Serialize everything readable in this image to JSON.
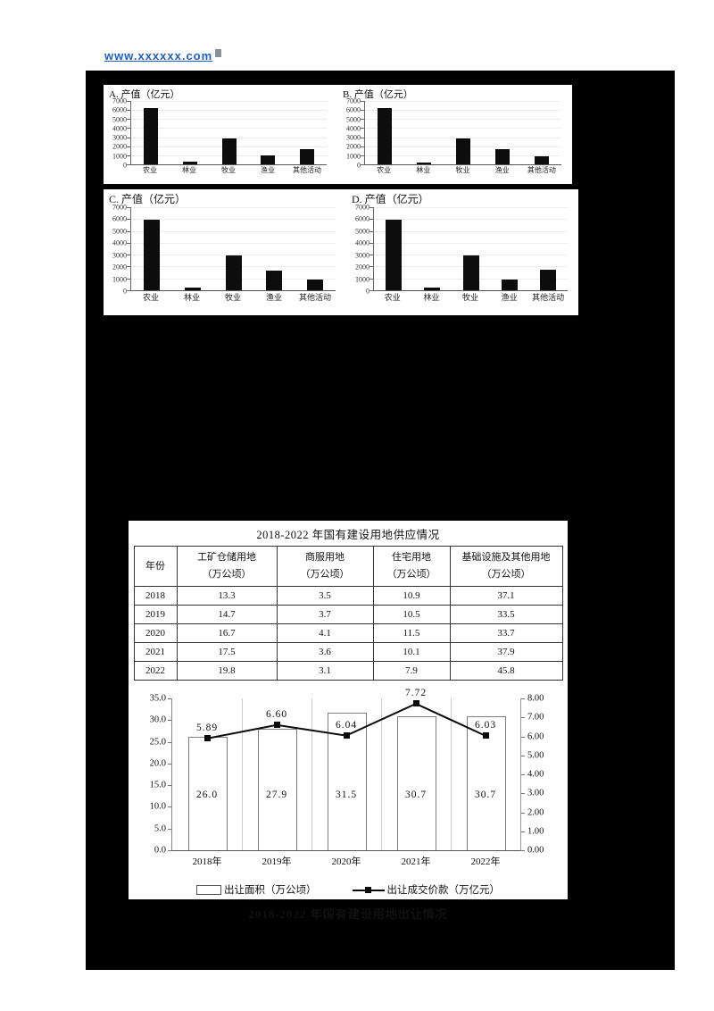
{
  "link": {
    "text": "www.xxxxxx.com",
    "color": "#1f5fc4"
  },
  "colors": {
    "page_bg": "#ffffff",
    "blackout": "#000000",
    "bar_fill": "#0d0d0d",
    "line": "#0a0a0a"
  },
  "chart_data": [
    {
      "type": "bar",
      "option": "A.",
      "title": "产值（亿元）",
      "categories": [
        "农业",
        "林业",
        "牧业",
        "渔业",
        "其他活动"
      ],
      "values": [
        6200,
        250,
        2900,
        950,
        1650
      ],
      "ylim": [
        0,
        7000
      ],
      "yticks": [
        "7000",
        "6000",
        "5000",
        "4000",
        "3000",
        "2000",
        "1000",
        "0"
      ]
    },
    {
      "type": "bar",
      "option": "B.",
      "title": "产值（亿元）",
      "categories": [
        "农业",
        "林业",
        "牧业",
        "渔业",
        "其他活动"
      ],
      "values": [
        6250,
        230,
        2900,
        1700,
        900
      ],
      "ylim": [
        0,
        7000
      ],
      "yticks": [
        "7000",
        "6000",
        "5000",
        "4000",
        "3000",
        "2000",
        "1000",
        "0"
      ]
    },
    {
      "type": "bar",
      "option": "C.",
      "title": "产值（亿元）",
      "categories": [
        "农业",
        "林业",
        "牧业",
        "渔业",
        "其他活动"
      ],
      "values": [
        5950,
        230,
        2900,
        1650,
        900
      ],
      "ylim": [
        0,
        7000
      ],
      "yticks": [
        "7000",
        "6000",
        "5000",
        "4000",
        "3000",
        "2000",
        "1000",
        "0"
      ]
    },
    {
      "type": "bar",
      "option": "D.",
      "title": "产值（亿元）",
      "categories": [
        "农业",
        "林业",
        "牧业",
        "渔业",
        "其他活动"
      ],
      "values": [
        5950,
        230,
        2900,
        900,
        1700
      ],
      "ylim": [
        0,
        7000
      ],
      "yticks": [
        "7000",
        "6000",
        "5000",
        "4000",
        "3000",
        "2000",
        "1000",
        "0"
      ]
    },
    {
      "type": "bar+line",
      "title": "2018-2022 年国有建设用地出让情况",
      "categories": [
        "2018年",
        "2019年",
        "2020年",
        "2021年",
        "2022年"
      ],
      "series": [
        {
          "name": "出让面积（万公顷）",
          "type": "bar",
          "axis": "left",
          "values": [
            26.0,
            27.9,
            31.5,
            30.7,
            30.7
          ],
          "labels": [
            "26.0",
            "27.9",
            "31.5",
            "30.7",
            "30.7"
          ]
        },
        {
          "name": "出让成交价款（万亿元）",
          "type": "line",
          "axis": "right",
          "values": [
            5.89,
            6.6,
            6.04,
            7.72,
            6.03
          ],
          "labels": [
            "5.89",
            "6.60",
            "6.04",
            "7.72",
            "6.03"
          ]
        }
      ],
      "left_axis": {
        "min": 0,
        "max": 35,
        "ticks": [
          "35.0",
          "30.0",
          "25.0",
          "20.0",
          "15.0",
          "10.0",
          "5.0",
          "0.0"
        ]
      },
      "right_axis": {
        "min": 0,
        "max": 8,
        "ticks": [
          "8.00",
          "7.00",
          "6.00",
          "5.00",
          "4.00",
          "3.00",
          "2.00",
          "1.00",
          "0.00"
        ]
      },
      "legend_position": "bottom",
      "grid": "vertical"
    }
  ],
  "supply_table": {
    "title": "2018-2022 年国有建设用地供应情况",
    "columns": [
      [
        "年份",
        ""
      ],
      [
        "工矿仓储用地",
        "（万公顷）"
      ],
      [
        "商服用地",
        "（万公顷）"
      ],
      [
        "住宅用地",
        "（万公顷）"
      ],
      [
        "基础设施及其他用地",
        "（万公顷）"
      ]
    ],
    "rows": [
      [
        "2018",
        "13.3",
        "3.5",
        "10.9",
        "37.1"
      ],
      [
        "2019",
        "14.7",
        "3.7",
        "10.5",
        "33.5"
      ],
      [
        "2020",
        "16.7",
        "4.1",
        "11.5",
        "33.7"
      ],
      [
        "2021",
        "17.5",
        "3.6",
        "10.1",
        "37.9"
      ],
      [
        "2022",
        "19.8",
        "3.1",
        "7.9",
        "45.8"
      ]
    ]
  }
}
